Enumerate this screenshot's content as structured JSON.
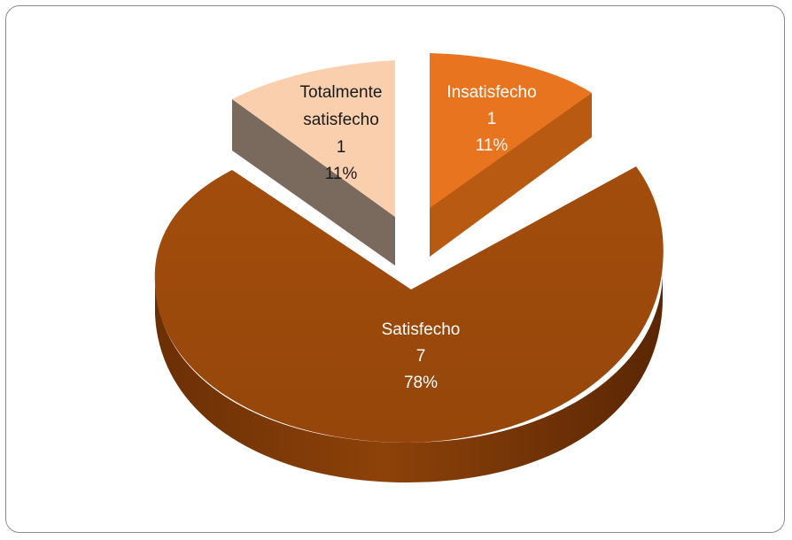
{
  "chart_data": {
    "type": "pie",
    "style": "3d-exploded",
    "title": "",
    "slices": [
      {
        "category": "Insatisfecho",
        "value": 1,
        "percent": "11%",
        "color": "#e8741f",
        "label_color": "#ffffff"
      },
      {
        "category": "Satisfecho",
        "value": 7,
        "percent": "78%",
        "color": "#a14b0c",
        "label_color": "#ffffff"
      },
      {
        "category": "Totalmente satisfecho",
        "value": 1,
        "percent": "11%",
        "color": "#f9cfad",
        "label_color": "#1a1a1a"
      }
    ],
    "legend": "none"
  }
}
